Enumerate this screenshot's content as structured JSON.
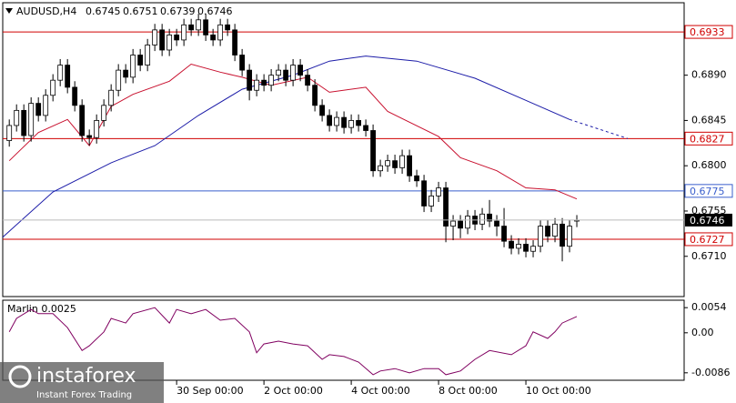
{
  "chart_data": [
    {
      "type": "candlestick",
      "title": "AUDUSD,H4",
      "candles": [
        [
          0.6825,
          0.6846,
          0.6819,
          0.684
        ],
        [
          0.684,
          0.6861,
          0.6834,
          0.6855
        ],
        [
          0.6855,
          0.6861,
          0.6824,
          0.683
        ],
        [
          0.683,
          0.6868,
          0.6824,
          0.6862
        ],
        [
          0.6862,
          0.6868,
          0.6844,
          0.685
        ],
        [
          0.685,
          0.6876,
          0.6844,
          0.687
        ],
        [
          0.687,
          0.6891,
          0.6864,
          0.6885
        ],
        [
          0.6885,
          0.6906,
          0.6879,
          0.69
        ],
        [
          0.69,
          0.6906,
          0.6872,
          0.6878
        ],
        [
          0.6878,
          0.6884,
          0.6854,
          0.686
        ],
        [
          0.686,
          0.6866,
          0.6824,
          0.683
        ],
        [
          0.683,
          0.6836,
          0.682,
          0.6828
        ],
        [
          0.6828,
          0.6851,
          0.6822,
          0.6845
        ],
        [
          0.6845,
          0.6866,
          0.6839,
          0.686
        ],
        [
          0.686,
          0.6881,
          0.6854,
          0.6875
        ],
        [
          0.6875,
          0.6901,
          0.6869,
          0.6895
        ],
        [
          0.6895,
          0.6901,
          0.6882,
          0.6888
        ],
        [
          0.6888,
          0.6916,
          0.6882,
          0.691
        ],
        [
          0.691,
          0.6916,
          0.6894,
          0.69
        ],
        [
          0.69,
          0.6926,
          0.6894,
          0.692
        ],
        [
          0.692,
          0.6941,
          0.6914,
          0.6935
        ],
        [
          0.6935,
          0.6941,
          0.6909,
          0.6915
        ],
        [
          0.6915,
          0.6936,
          0.6909,
          0.693
        ],
        [
          0.693,
          0.6936,
          0.6919,
          0.6925
        ],
        [
          0.6925,
          0.6946,
          0.6919,
          0.694
        ],
        [
          0.694,
          0.6946,
          0.6929,
          0.6935
        ],
        [
          0.6935,
          0.6951,
          0.6929,
          0.6945
        ],
        [
          0.6945,
          0.6951,
          0.6924,
          0.693
        ],
        [
          0.693,
          0.6936,
          0.6919,
          0.6925
        ],
        [
          0.6925,
          0.6946,
          0.6919,
          0.694
        ],
        [
          0.694,
          0.6946,
          0.6929,
          0.6935
        ],
        [
          0.6935,
          0.6941,
          0.6904,
          0.691
        ],
        [
          0.691,
          0.6916,
          0.6889,
          0.6895
        ],
        [
          0.6895,
          0.6901,
          0.6865,
          0.6875
        ],
        [
          0.6875,
          0.6891,
          0.6869,
          0.6885
        ],
        [
          0.6885,
          0.6891,
          0.6874,
          0.688
        ],
        [
          0.688,
          0.6896,
          0.6874,
          0.689
        ],
        [
          0.689,
          0.6901,
          0.6884,
          0.6895
        ],
        [
          0.6895,
          0.6901,
          0.6879,
          0.6885
        ],
        [
          0.6885,
          0.6906,
          0.6879,
          0.69
        ],
        [
          0.69,
          0.6906,
          0.6884,
          0.689
        ],
        [
          0.689,
          0.6896,
          0.6874,
          0.688
        ],
        [
          0.688,
          0.6886,
          0.6854,
          0.686
        ],
        [
          0.686,
          0.6866,
          0.6844,
          0.685
        ],
        [
          0.685,
          0.6856,
          0.6834,
          0.684
        ],
        [
          0.684,
          0.6854,
          0.6834,
          0.6848
        ],
        [
          0.6848,
          0.6854,
          0.6832,
          0.6838
        ],
        [
          0.6838,
          0.6851,
          0.6832,
          0.6845
        ],
        [
          0.6845,
          0.6851,
          0.6834,
          0.684
        ],
        [
          0.684,
          0.6846,
          0.6829,
          0.6835
        ],
        [
          0.6835,
          0.6841,
          0.6789,
          0.6795
        ],
        [
          0.6795,
          0.6806,
          0.6789,
          0.68
        ],
        [
          0.68,
          0.6811,
          0.6794,
          0.6805
        ],
        [
          0.6805,
          0.6811,
          0.6792,
          0.6798
        ],
        [
          0.6798,
          0.6816,
          0.6792,
          0.681
        ],
        [
          0.681,
          0.6816,
          0.6784,
          0.679
        ],
        [
          0.679,
          0.6796,
          0.6779,
          0.6785
        ],
        [
          0.6785,
          0.6791,
          0.6754,
          0.676
        ],
        [
          0.676,
          0.6776,
          0.6754,
          0.677
        ],
        [
          0.677,
          0.6784,
          0.6764,
          0.6778
        ],
        [
          0.6778,
          0.6784,
          0.6724,
          0.674
        ],
        [
          0.674,
          0.6751,
          0.6726,
          0.6745
        ],
        [
          0.6745,
          0.6751,
          0.6728,
          0.6738
        ],
        [
          0.6738,
          0.6756,
          0.6732,
          0.675
        ],
        [
          0.675,
          0.6756,
          0.6736,
          0.6742
        ],
        [
          0.6742,
          0.6758,
          0.6736,
          0.6752
        ],
        [
          0.6752,
          0.6766,
          0.6739,
          0.6745
        ],
        [
          0.6745,
          0.6751,
          0.673,
          0.674
        ],
        [
          0.674,
          0.6758,
          0.6719,
          0.6725
        ],
        [
          0.6725,
          0.6731,
          0.6712,
          0.6718
        ],
        [
          0.6718,
          0.6728,
          0.6712,
          0.6722
        ],
        [
          0.6722,
          0.6728,
          0.6709,
          0.6715
        ],
        [
          0.6715,
          0.6726,
          0.6709,
          0.672
        ],
        [
          0.672,
          0.6746,
          0.6714,
          0.674
        ],
        [
          0.674,
          0.6746,
          0.6724,
          0.673
        ],
        [
          0.673,
          0.6748,
          0.6724,
          0.6742
        ],
        [
          0.6742,
          0.6748,
          0.6705,
          0.672
        ],
        [
          0.672,
          0.6746,
          0.6714,
          0.674
        ],
        [
          0.6745,
          0.6751,
          0.6739,
          0.6746
        ]
      ],
      "xlim": [
        -0.9,
        92.75
      ],
      "ylim": [
        0.667,
        0.6962
      ],
      "yticks": [
        {
          "value": 0.689,
          "label": "0.6890"
        },
        0.6845,
        {
          "value": 0.68,
          "label": "0.6800"
        },
        0.6755,
        {
          "value": 0.671,
          "label": "0.6710"
        }
      ],
      "xticks": [
        {
          "value": 23,
          "label": "30 Sep 00:00"
        },
        {
          "value": 35,
          "label": "2 Oct 00:00"
        },
        {
          "value": 47,
          "label": "4 Oct 00:00"
        },
        {
          "value": 59,
          "label": "8 Oct 00:00"
        },
        {
          "value": 71,
          "label": "10 Oct 00:00"
        }
      ],
      "lines": [
        {
          "color": "#c8102e",
          "dashed": false,
          "x": [
            0,
            4,
            8,
            11,
            14,
            17,
            22,
            25,
            29,
            32,
            36,
            41,
            44,
            49,
            52,
            59,
            62,
            67,
            71,
            75,
            78
          ],
          "values": [
            0.6805,
            0.6833,
            0.6846,
            0.682,
            0.6859,
            0.6871,
            0.6884,
            0.6901,
            0.6893,
            0.6888,
            0.688,
            0.6888,
            0.6873,
            0.6878,
            0.6854,
            0.6829,
            0.6808,
            0.6795,
            0.6778,
            0.6776,
            0.6767
          ]
        },
        {
          "color": "#1c1ca8",
          "dashed": false,
          "x": [
            -0.9,
            6,
            14,
            20,
            26,
            32,
            39,
            44,
            49,
            56,
            64,
            71,
            77
          ],
          "values": [
            0.6729,
            0.6774,
            0.6803,
            0.682,
            0.685,
            0.6876,
            0.689,
            0.6904,
            0.6909,
            0.6904,
            0.6887,
            0.6865,
            0.6846
          ]
        },
        {
          "color": "#1c1ca8",
          "dashed": true,
          "x": [
            77,
            85
          ],
          "values": [
            0.6846,
            0.6827
          ]
        }
      ],
      "levels": [
        {
          "value": 0.6933,
          "color": "#d00000"
        },
        {
          "value": 0.6827,
          "color": "#d00000"
        },
        {
          "value": 0.6775,
          "color": "#3a5fcd"
        },
        {
          "value": 0.6727,
          "color": "#d00000"
        }
      ]
    },
    {
      "type": "line",
      "title": "Marlin 0.0025",
      "color": "#800060",
      "ylim": [
        -0.0102,
        0.007
      ],
      "yticks": [
        0.0054,
        {
          "value": 0,
          "label": "0.00"
        },
        -0.0086
      ],
      "x": [
        0,
        1,
        3,
        4,
        6,
        8,
        10,
        11,
        13,
        14,
        16,
        17,
        20,
        22,
        23,
        25,
        27,
        29,
        31,
        33,
        34,
        35,
        37,
        39,
        41,
        43,
        44,
        46,
        48,
        50,
        51,
        53,
        55,
        57,
        59,
        60,
        62,
        64,
        66,
        69,
        71,
        72,
        74,
        75,
        76,
        78
      ],
      "values": [
        0.0002,
        0.0031,
        0.005,
        0.0041,
        0.0041,
        0.0011,
        -0.0038,
        -0.0028,
        0.0002,
        0.0031,
        0.0021,
        0.0041,
        0.0054,
        0.0021,
        0.005,
        0.0041,
        0.005,
        0.0027,
        0.0031,
        0.0002,
        -0.0043,
        -0.0024,
        -0.0018,
        -0.0024,
        -0.0028,
        -0.0057,
        -0.0047,
        -0.0051,
        -0.0063,
        -0.009,
        -0.0082,
        -0.0077,
        -0.0086,
        -0.0077,
        -0.0077,
        -0.009,
        -0.0082,
        -0.0057,
        -0.0038,
        -0.0047,
        -0.0028,
        0.0002,
        -0.0012,
        0.0002,
        0.0021,
        0.0035
      ]
    }
  ],
  "watermark": {
    "brand": "instaforex",
    "tagline": "Instant Forex Trading"
  }
}
